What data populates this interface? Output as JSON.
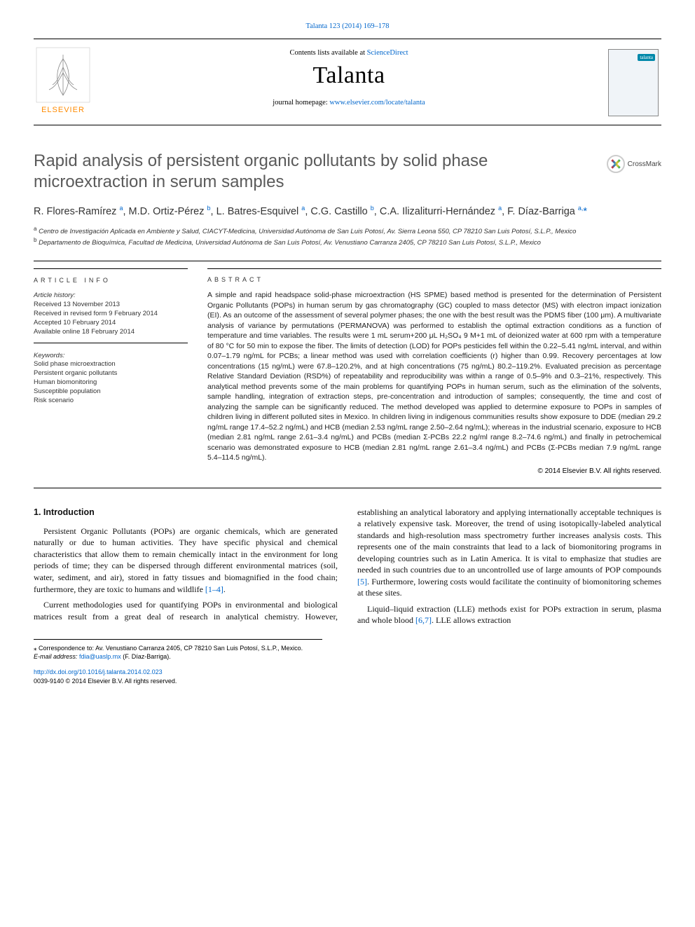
{
  "top_citation": {
    "journal_issue": "Talanta 123 (2014) 169–178",
    "journal_link": "Talanta 123 (2014) 169–178"
  },
  "header": {
    "contents_prefix": "Contents lists available at ",
    "contents_link": "ScienceDirect",
    "journal_name": "Talanta",
    "homepage_prefix": "journal homepage: ",
    "homepage_link": "www.elsevier.com/locate/talanta",
    "publisher_label": "ELSEVIER",
    "cover_brand": "talanta"
  },
  "crossmark_label": "CrossMark",
  "title": "Rapid analysis of persistent organic pollutants by solid phase microextraction in serum samples",
  "authors_html": "R. Flores-Ramírez <sup>a</sup>, M.D. Ortiz-Pérez <sup>b</sup>, L. Batres-Esquivel <sup>a</sup>, C.G. Castillo <sup>b</sup>, C.A. Ilizaliturri-Hernández <sup>a</sup>, F. Díaz-Barriga <sup>a,</sup><span class=\"star\">*</span>",
  "affiliations": {
    "a": "Centro de Investigación Aplicada en Ambiente y Salud, CIACYT-Medicina, Universidad Autónoma de San Luis Potosí, Av. Sierra Leona 550, CP 78210 San Luis Potosí, S.L.P., Mexico",
    "b": "Departamento de Bioquímica, Facultad de Medicina, Universidad Autónoma de San Luis Potosí, Av. Venustiano Carranza 2405, CP 78210 San Luis Potosí, S.L.P., Mexico"
  },
  "article_info": {
    "heading": "ARTICLE INFO",
    "history_label": "Article history:",
    "received": "Received 13 November 2013",
    "revised": "Received in revised form 9 February 2014",
    "accepted": "Accepted 10 February 2014",
    "online": "Available online 18 February 2014",
    "keywords_label": "Keywords:",
    "keywords": [
      "Solid phase microextraction",
      "Persistent organic pollutants",
      "Human biomonitoring",
      "Susceptible population",
      "Risk scenario"
    ]
  },
  "abstract": {
    "heading": "ABSTRACT",
    "text": "A simple and rapid headspace solid-phase microextraction (HS SPME) based method is presented for the determination of Persistent Organic Pollutants (POPs) in human serum by gas chromatography (GC) coupled to mass detector (MS) with electron impact ionization (EI). As an outcome of the assessment of several polymer phases; the one with the best result was the PDMS fiber (100 μm). A multivariate analysis of variance by permutations (PERMANOVA) was performed to establish the optimal extraction conditions as a function of temperature and time variables. The results were 1 mL serum+200 μL H₂SO₄ 9 M+1 mL of deionized water at 600 rpm with a temperature of 80 °C for 50 min to expose the fiber. The limits of detection (LOD) for POPs pesticides fell within the 0.22–5.41 ng/mL interval, and within 0.07–1.79 ng/mL for PCBs; a linear method was used with correlation coefficients (r) higher than 0.99. Recovery percentages at low concentrations (15 ng/mL) were 67.8–120.2%, and at high concentrations (75 ng/mL) 80.2–119.2%. Evaluated precision as percentage Relative Standard Deviation (RSD%) of repeatability and reproducibility was within a range of 0.5–9% and 0.3–21%, respectively. This analytical method prevents some of the main problems for quantifying POPs in human serum, such as the elimination of the solvents, sample handling, integration of extraction steps, pre-concentration and introduction of samples; consequently, the time and cost of analyzing the sample can be significantly reduced. The method developed was applied to determine exposure to POPs in samples of children living in different polluted sites in Mexico. In children living in indigenous communities results show exposure to DDE (median 29.2 ng/mL range 17.4–52.2 ng/mL) and HCB (median 2.53 ng/mL range 2.50–2.64 ng/mL); whereas in the industrial scenario, exposure to HCB (median 2.81 ng/mL range 2.61–3.4 ng/mL) and PCBs (median Σ-PCBs 22.2 ng/ml range 8.2–74.6 ng/mL) and finally in petrochemical scenario was demonstrated exposure to HCB (median 2.81 ng/mL range 2.61–3.4 ng/mL) and PCBs (Σ-PCBs median 7.9 ng/mL range 5.4–114.5 ng/mL).",
    "copyright": "© 2014 Elsevier B.V. All rights reserved."
  },
  "intro": {
    "heading": "1.  Introduction",
    "p1": "Persistent Organic Pollutants (POPs) are organic chemicals, which are generated naturally or due to human activities. They have specific physical and chemical characteristics that allow them to remain chemically intact in the environment for long periods of time; they can be dispersed through different environmental matrices (soil, water, sediment, and air), stored in fatty tissues and biomagnified in the food chain; furthermore, they are toxic to humans and wildlife ",
    "cite1": "[1–4]",
    "p1_tail": ".",
    "p2": "Current methodologies used for quantifying POPs in environmental and biological matrices result from a great deal of research in analytical chemistry. However, establishing an analytical laboratory and applying internationally acceptable techniques is a relatively expensive task. Moreover, the trend of using isotopically-labeled analytical standards and high-resolution mass spectrometry further increases analysis costs. This represents one of the main constraints that lead to a lack of biomonitoring programs in developing countries such as in Latin America. It is vital to emphasize that studies are needed in such countries due to an uncontrolled use of large amounts of POP compounds ",
    "cite2": "[5]",
    "p2_tail": ". Furthermore, lowering costs would facilitate the continuity of biomonitoring schemes at these sites.",
    "p3": "Liquid–liquid extraction (LLE) methods exist for POPs extraction in serum, plasma and whole blood ",
    "cite3": "[6,7]",
    "p3_tail": ". LLE allows extraction"
  },
  "footnote": {
    "corr_prefix": "⁎ Correspondence to: ",
    "corr": "Av. Venustiano Carranza 2405, CP 78210 San Luis Potosí, S.L.P., Mexico.",
    "email_label": "E-mail address: ",
    "email": "fdia@uaslp.mx",
    "email_tail": " (F. Díaz-Barriga)."
  },
  "bottom": {
    "doi": "http://dx.doi.org/10.1016/j.talanta.2014.02.023",
    "issn_line": "0039-9140 © 2014 Elsevier B.V. All rights reserved."
  },
  "colors": {
    "link": "#0066cc",
    "title_gray": "#5a5a5a",
    "text": "#000000",
    "elsevier_orange": "#ff8a00"
  }
}
